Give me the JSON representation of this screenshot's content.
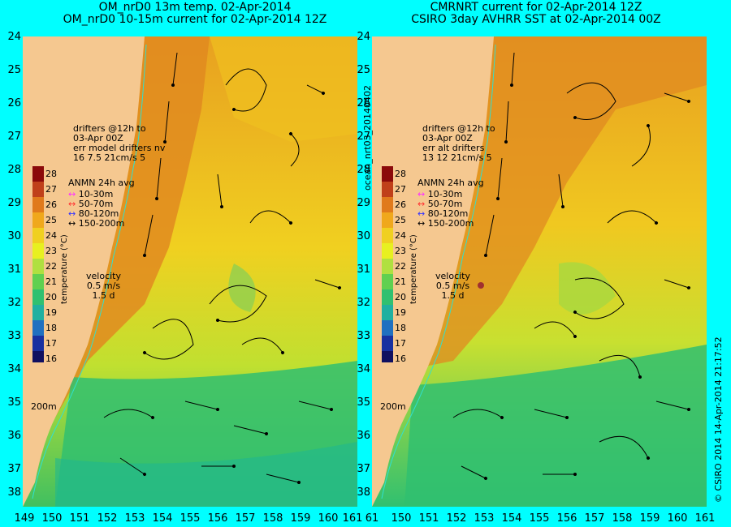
{
  "titles": {
    "left_line1": "OM_nrD0 13m temp. 02-Apr-2014",
    "left_line2": "OM_nrD0 10-15m current for 02-Apr-2014 12Z",
    "right_line1": "CMRNRT current for 02-Apr-2014 12Z",
    "right_line2": "CSIRO 3day AVHRR SST at 02-Apr-2014 00Z"
  },
  "axes": {
    "lat_labels": [
      "24",
      "25",
      "26",
      "27",
      "28",
      "29",
      "30",
      "31",
      "32",
      "33",
      "34",
      "35",
      "36",
      "37",
      "38"
    ],
    "lon_labels_left": [
      "149",
      "150",
      "151",
      "152",
      "153",
      "154",
      "155",
      "156",
      "157",
      "158",
      "159",
      "160",
      "161"
    ],
    "lon_labels_right": [
      "61",
      "150",
      "151",
      "152",
      "153",
      "154",
      "155",
      "156",
      "157",
      "158",
      "159",
      "160",
      "161"
    ]
  },
  "left_panel": {
    "drifter_text": "drifters @12h to\n03-Apr 00Z\nerr model drifters nv\n16 7.5 21cm/s 5",
    "anmn_title": "ANMN 24h avg",
    "legend": [
      "10-30m",
      "50-70m",
      "80-120m",
      "150-200m"
    ],
    "velocity_text": "velocity\n0.5 m/s\n1.5 d",
    "depth_label": "200m"
  },
  "right_panel": {
    "drifter_text": "drifters @12h to\n03-Apr 00Z\nerr alt drifters\n13 12 21cm/s 5",
    "anmn_title": "ANMN 24h avg",
    "legend": [
      "10-30m",
      "50-70m",
      "80-120m",
      "150-200m"
    ],
    "velocity_text": "velocity\n0.5 m/s\n1.5 d",
    "depth_label": "200m"
  },
  "colorbar": {
    "title": "temperature (°C)",
    "ticks": [
      "28",
      "27",
      "26",
      "25",
      "24",
      "23",
      "22",
      "21",
      "20",
      "19",
      "18",
      "17",
      "16"
    ],
    "colors": [
      "#8b0a0a",
      "#c0401a",
      "#e07a1c",
      "#f0a81c",
      "#f0d020",
      "#e8f020",
      "#b0e040",
      "#60d050",
      "#30c070",
      "#20b0a0",
      "#2070c0",
      "#1830a0",
      "#101060"
    ]
  },
  "side_labels": {
    "middle_vertical": "ocean_nrt03_20140402",
    "right_vertical": "© CSIRO 2014   14-Apr-2014 21:17:52"
  },
  "legend_colors": [
    "#ff33ff",
    "#ff3333",
    "#3333ff",
    "#000000"
  ]
}
